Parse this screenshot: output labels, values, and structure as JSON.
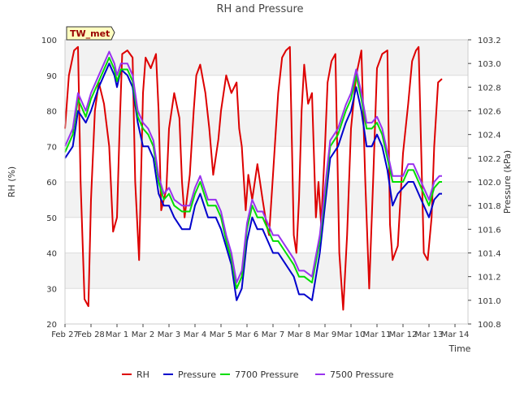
{
  "chart_data": {
    "type": "line",
    "title": "RH and Pressure",
    "station_label": "TW_met",
    "xlabel": "Time",
    "ylabel_left": "RH (%)",
    "ylabel_right": "Pressure (kPa)",
    "x_unit": "days since Feb 27",
    "xlim": [
      0,
      15.5
    ],
    "ylim_left": [
      20,
      100
    ],
    "ylim_right": [
      100.8,
      103.2
    ],
    "x_ticks": [
      {
        "x": 0,
        "label": "Feb 27"
      },
      {
        "x": 1,
        "label": "Feb 28"
      },
      {
        "x": 2,
        "label": "Mar 1"
      },
      {
        "x": 3,
        "label": "Mar 2"
      },
      {
        "x": 4,
        "label": "Mar 3"
      },
      {
        "x": 5,
        "label": "Mar 4"
      },
      {
        "x": 6,
        "label": "Mar 5"
      },
      {
        "x": 7,
        "label": "Mar 6"
      },
      {
        "x": 8,
        "label": "Mar 7"
      },
      {
        "x": 9,
        "label": "Mar 8"
      },
      {
        "x": 10,
        "label": "Mar 9"
      },
      {
        "x": 11,
        "label": "Mar 10"
      },
      {
        "x": 12,
        "label": "Mar 11"
      },
      {
        "x": 13,
        "label": "Mar 12"
      },
      {
        "x": 14,
        "label": "Mar 13"
      },
      {
        "x": 15,
        "label": "Mar 14"
      }
    ],
    "y_ticks_left": [
      20,
      30,
      40,
      50,
      60,
      70,
      80,
      90,
      100
    ],
    "y_ticks_right": [
      "100.8",
      "101.0",
      "101.2",
      "101.4",
      "101.6",
      "101.8",
      "102.0",
      "102.2",
      "102.4",
      "102.6",
      "102.8",
      "103.0",
      "103.2"
    ],
    "grid": true,
    "legend_position": "bottom",
    "series": [
      {
        "name": "RH",
        "axis": "left",
        "color": "#dd0000",
        "x": [
          0.0,
          0.15,
          0.35,
          0.5,
          0.6,
          0.75,
          0.9,
          1.0,
          1.15,
          1.3,
          1.5,
          1.7,
          1.85,
          2.0,
          2.1,
          2.2,
          2.4,
          2.6,
          2.7,
          2.85,
          3.0,
          3.1,
          3.3,
          3.5,
          3.6,
          3.7,
          3.9,
          4.0,
          4.2,
          4.4,
          4.5,
          4.6,
          4.8,
          4.95,
          5.05,
          5.2,
          5.4,
          5.55,
          5.7,
          5.9,
          6.0,
          6.2,
          6.4,
          6.6,
          6.7,
          6.8,
          6.95,
          7.05,
          7.2,
          7.4,
          7.6,
          7.75,
          7.85,
          8.0,
          8.2,
          8.35,
          8.5,
          8.65,
          8.8,
          8.9,
          9.0,
          9.1,
          9.2,
          9.35,
          9.5,
          9.65,
          9.75,
          9.85,
          10.0,
          10.1,
          10.25,
          10.4,
          10.55,
          10.7,
          10.85,
          11.0,
          11.2,
          11.4,
          11.55,
          11.7,
          11.85,
          12.0,
          12.2,
          12.4,
          12.5,
          12.6,
          12.8,
          13.0,
          13.2,
          13.35,
          13.5,
          13.6,
          13.8,
          13.95,
          14.1,
          14.2,
          14.35,
          14.5
        ],
        "y": [
          75,
          90,
          97,
          98,
          60,
          27,
          25,
          55,
          80,
          88,
          82,
          70,
          46,
          50,
          75,
          96,
          97,
          95,
          60,
          38,
          85,
          95,
          92,
          96,
          80,
          52,
          58,
          75,
          85,
          78,
          60,
          50,
          62,
          80,
          90,
          93,
          85,
          75,
          62,
          72,
          80,
          90,
          85,
          88,
          75,
          70,
          52,
          62,
          55,
          65,
          55,
          48,
          45,
          62,
          85,
          95,
          97,
          98,
          45,
          40,
          55,
          80,
          93,
          82,
          85,
          50,
          60,
          48,
          70,
          88,
          94,
          96,
          40,
          24,
          45,
          75,
          90,
          97,
          60,
          30,
          60,
          92,
          96,
          97,
          48,
          38,
          42,
          68,
          82,
          94,
          97,
          98,
          40,
          38,
          50,
          70,
          88,
          89
        ]
      },
      {
        "name": "Pressure",
        "axis": "right",
        "color": "#0000cc",
        "x": [
          0.0,
          0.3,
          0.5,
          0.8,
          1.0,
          1.3,
          1.5,
          1.7,
          1.9,
          2.0,
          2.15,
          2.4,
          2.6,
          2.8,
          3.0,
          3.2,
          3.4,
          3.6,
          3.8,
          4.0,
          4.2,
          4.5,
          4.8,
          5.0,
          5.2,
          5.5,
          5.8,
          6.0,
          6.2,
          6.4,
          6.6,
          6.8,
          7.0,
          7.2,
          7.4,
          7.6,
          7.8,
          8.0,
          8.2,
          8.5,
          8.8,
          9.0,
          9.2,
          9.5,
          9.8,
          10.0,
          10.2,
          10.5,
          10.8,
          11.0,
          11.2,
          11.4,
          11.6,
          11.8,
          12.0,
          12.2,
          12.4,
          12.6,
          12.8,
          13.0,
          13.2,
          13.4,
          13.6,
          13.8,
          14.0,
          14.2,
          14.4,
          14.5
        ],
        "y": [
          102.2,
          102.3,
          102.6,
          102.5,
          102.6,
          102.8,
          102.9,
          103.0,
          102.9,
          102.8,
          102.95,
          102.9,
          102.8,
          102.5,
          102.3,
          102.3,
          102.2,
          101.9,
          101.8,
          101.8,
          101.7,
          101.6,
          101.6,
          101.8,
          101.9,
          101.7,
          101.7,
          101.6,
          101.45,
          101.3,
          101.0,
          101.1,
          101.5,
          101.7,
          101.6,
          101.6,
          101.5,
          101.4,
          101.4,
          101.3,
          101.2,
          101.05,
          101.05,
          101.0,
          101.4,
          101.8,
          102.2,
          102.3,
          102.5,
          102.6,
          102.8,
          102.6,
          102.3,
          102.3,
          102.4,
          102.3,
          102.1,
          101.8,
          101.9,
          101.95,
          102.0,
          102.0,
          101.9,
          101.8,
          101.7,
          101.85,
          101.9,
          101.9
        ]
      },
      {
        "name": "7700 Pressure",
        "axis": "right",
        "color": "#00dd00",
        "x": [
          0.0,
          0.3,
          0.5,
          0.8,
          1.0,
          1.3,
          1.5,
          1.7,
          1.9,
          2.0,
          2.15,
          2.4,
          2.6,
          2.8,
          3.0,
          3.2,
          3.4,
          3.6,
          3.8,
          4.0,
          4.2,
          4.5,
          4.8,
          5.0,
          5.2,
          5.5,
          5.8,
          6.0,
          6.2,
          6.4,
          6.6,
          6.8,
          7.0,
          7.2,
          7.4,
          7.6,
          7.8,
          8.0,
          8.2,
          8.5,
          8.8,
          9.0,
          9.2,
          9.5,
          9.8,
          10.0,
          10.2,
          10.5,
          10.8,
          11.0,
          11.2,
          11.4,
          11.6,
          11.8,
          12.0,
          12.2,
          12.4,
          12.6,
          12.8,
          13.0,
          13.2,
          13.4,
          13.6,
          13.8,
          14.0,
          14.2,
          14.4,
          14.5
        ],
        "y": [
          102.25,
          102.4,
          102.7,
          102.55,
          102.7,
          102.85,
          102.95,
          103.05,
          102.95,
          102.85,
          102.95,
          102.95,
          102.85,
          102.55,
          102.45,
          102.4,
          102.3,
          102.0,
          101.85,
          101.9,
          101.8,
          101.75,
          101.75,
          101.9,
          102.0,
          101.8,
          101.8,
          101.7,
          101.5,
          101.35,
          101.1,
          101.2,
          101.6,
          101.8,
          101.7,
          101.7,
          101.6,
          101.5,
          101.5,
          101.4,
          101.3,
          101.2,
          101.2,
          101.15,
          101.5,
          101.9,
          102.3,
          102.4,
          102.6,
          102.7,
          102.9,
          102.7,
          102.45,
          102.45,
          102.5,
          102.4,
          102.2,
          102.0,
          102.0,
          102.0,
          102.1,
          102.1,
          102.0,
          101.9,
          101.8,
          101.95,
          102.0,
          102.0
        ]
      },
      {
        "name": "7500 Pressure",
        "axis": "right",
        "color": "#9933ee",
        "x": [
          0.0,
          0.3,
          0.5,
          0.8,
          1.0,
          1.3,
          1.5,
          1.7,
          1.9,
          2.0,
          2.15,
          2.4,
          2.6,
          2.8,
          3.0,
          3.2,
          3.4,
          3.6,
          3.8,
          4.0,
          4.2,
          4.5,
          4.8,
          5.0,
          5.2,
          5.5,
          5.8,
          6.0,
          6.2,
          6.4,
          6.6,
          6.8,
          7.0,
          7.2,
          7.4,
          7.6,
          7.8,
          8.0,
          8.2,
          8.5,
          8.8,
          9.0,
          9.2,
          9.5,
          9.8,
          10.0,
          10.2,
          10.5,
          10.8,
          11.0,
          11.2,
          11.4,
          11.6,
          11.8,
          12.0,
          12.2,
          12.4,
          12.6,
          12.8,
          13.0,
          13.2,
          13.4,
          13.6,
          13.8,
          14.0,
          14.2,
          14.4,
          14.5
        ],
        "y": [
          102.3,
          102.45,
          102.75,
          102.6,
          102.75,
          102.9,
          103.0,
          103.1,
          103.0,
          102.9,
          103.0,
          103.0,
          102.9,
          102.6,
          102.5,
          102.45,
          102.35,
          102.05,
          101.9,
          101.95,
          101.85,
          101.8,
          101.8,
          101.95,
          102.05,
          101.85,
          101.85,
          101.75,
          101.55,
          101.4,
          101.15,
          101.25,
          101.65,
          101.85,
          101.75,
          101.75,
          101.65,
          101.55,
          101.55,
          101.45,
          101.35,
          101.25,
          101.25,
          101.2,
          101.55,
          101.95,
          102.35,
          102.45,
          102.65,
          102.75,
          102.95,
          102.75,
          102.5,
          102.5,
          102.55,
          102.45,
          102.25,
          102.05,
          102.05,
          102.05,
          102.15,
          102.15,
          102.05,
          101.95,
          101.85,
          102.0,
          102.05,
          102.05
        ]
      }
    ]
  }
}
